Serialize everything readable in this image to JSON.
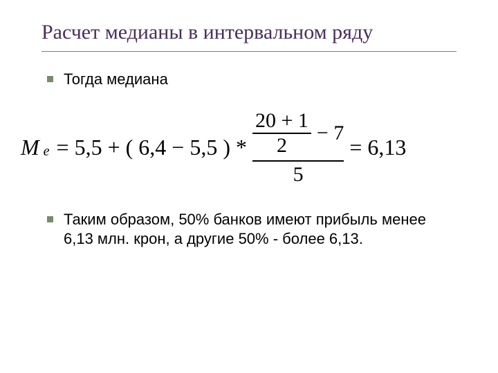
{
  "title": "Расчет медианы в интервальном ряду",
  "bullets": {
    "first": "Тогда медиана",
    "second": "Таким образом, 50% банков имеют прибыль менее 6,13 млн. крон, а другие 50% - более 6,13."
  },
  "formula": {
    "M": "M",
    "sub_e": "e",
    "eq1": "=",
    "v1": "5,5",
    "plus": "+",
    "lpar": "(",
    "v2": "6,4",
    "minus": "−",
    "v3": "5,5",
    "rpar": ")",
    "star": "*",
    "inner_num_expr": "20 + 1",
    "inner_den": "2",
    "minus7": "− 7",
    "outer_den": "5",
    "eq2": "=",
    "result": "6,13"
  },
  "style": {
    "title_color": "#4a2e5a",
    "rule_color": "#8f6aa0",
    "bullet_marker_color": "#7a8a6c",
    "formula_font": "Times New Roman"
  }
}
